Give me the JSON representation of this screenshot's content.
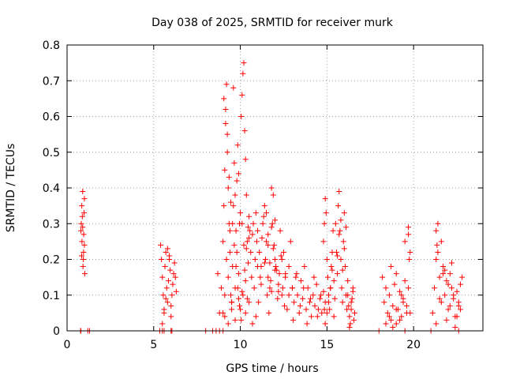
{
  "chart_data": {
    "type": "scatter",
    "title": "Day 038 of 2025, SRMTID for receiver murk",
    "xlabel": "GPS time / hours",
    "ylabel": "SRMTID / TECUs",
    "xlim": [
      0,
      24
    ],
    "ylim": [
      0,
      0.8
    ],
    "xticks": [
      0,
      5,
      10,
      15,
      20
    ],
    "yticks": [
      0,
      0.1,
      0.2,
      0.3,
      0.4,
      0.5,
      0.6,
      0.7,
      0.8
    ],
    "xtick_labels": [
      "0",
      "5",
      "10",
      "15",
      "20"
    ],
    "ytick_labels": [
      "0",
      "0.1",
      "0.2",
      "0.3",
      "0.4",
      "0.5",
      "0.6",
      "0.7",
      "0.8"
    ],
    "grid": true,
    "marker": "+",
    "marker_color": "#ff0000",
    "series": [
      {
        "x": [
          0.8,
          0.82,
          0.84,
          0.86,
          0.88,
          0.9,
          0.92,
          0.94,
          0.96,
          0.98,
          1.0,
          1.02,
          0.85,
          0.9,
          0.95,
          1.0,
          1.2,
          1.3,
          0.8,
          0.78,
          5.4,
          5.45,
          5.5,
          5.55,
          5.6,
          5.65,
          5.7,
          5.75,
          5.8,
          5.85,
          5.9,
          5.95,
          6.0,
          6.05,
          6.1,
          6.15,
          6.2,
          6.25,
          6.3,
          5.5,
          5.6,
          5.7,
          5.8,
          5.9,
          6.0,
          5.35,
          5.5,
          5.6,
          6.0,
          6.05,
          8.7,
          8.8,
          8.9,
          9.0,
          9.05,
          9.1,
          9.15,
          9.2,
          9.25,
          9.3,
          9.35,
          9.4,
          9.45,
          9.5,
          9.55,
          9.6,
          9.65,
          9.7,
          9.75,
          9.8,
          9.85,
          9.9,
          9.95,
          10.0,
          10.05,
          10.1,
          10.15,
          10.2,
          10.25,
          10.3,
          10.35,
          10.4,
          10.45,
          10.5,
          10.55,
          10.6,
          10.65,
          10.7,
          10.75,
          10.8,
          10.85,
          10.9,
          10.95,
          11.0,
          9.0,
          9.1,
          9.2,
          9.3,
          9.4,
          9.5,
          9.6,
          9.7,
          9.8,
          9.9,
          10.0,
          10.1,
          10.2,
          10.3,
          10.4,
          10.5,
          9.05,
          9.15,
          9.25,
          9.35,
          9.45,
          9.55,
          9.65,
          9.75,
          9.85,
          9.95,
          10.05,
          10.15,
          10.25,
          10.35,
          10.45,
          9.1,
          9.3,
          9.5,
          9.7,
          9.9,
          10.1,
          10.3,
          10.5,
          10.7,
          10.9,
          8.0,
          8.4,
          8.6,
          8.8,
          9.0,
          11.0,
          11.1,
          11.2,
          11.3,
          11.4,
          11.5,
          11.6,
          11.7,
          11.8,
          11.9,
          12.0,
          12.1,
          12.2,
          12.3,
          12.4,
          12.5,
          12.6,
          12.7,
          12.8,
          12.9,
          13.0,
          11.05,
          11.15,
          11.25,
          11.35,
          11.45,
          11.55,
          11.65,
          11.75,
          11.85,
          11.95,
          12.05,
          12.15,
          12.25,
          12.35,
          12.45,
          12.55,
          11.5,
          11.6,
          11.7,
          11.8,
          11.9,
          12.0,
          11.2,
          11.4,
          11.6,
          11.8,
          12.0,
          12.2,
          12.4,
          12.6,
          12.8,
          13.0,
          13.1,
          13.2,
          13.3,
          13.4,
          13.5,
          13.6,
          13.7,
          13.8,
          13.9,
          14.0,
          14.1,
          14.2,
          14.3,
          14.4,
          14.5,
          14.6,
          14.7,
          14.8,
          14.9,
          13.05,
          13.25,
          13.45,
          13.65,
          13.85,
          14.05,
          14.25,
          14.45,
          14.65,
          14.85,
          14.8,
          14.85,
          14.9,
          14.95,
          15.0,
          15.05,
          15.1,
          15.15,
          15.2,
          15.25,
          15.3,
          15.35,
          15.4,
          15.45,
          14.9,
          15.0,
          15.1,
          15.2,
          15.3,
          15.4,
          15.5,
          15.55,
          15.6,
          15.65,
          15.7,
          15.75,
          15.8,
          15.85,
          15.9,
          15.95,
          16.0,
          16.05,
          16.1,
          16.15,
          16.2,
          15.6,
          15.7,
          15.8,
          15.9,
          16.0,
          16.1,
          16.2,
          16.25,
          16.3,
          16.35,
          16.4,
          16.45,
          16.5,
          16.55,
          16.6,
          16.3,
          16.4,
          16.5,
          18.2,
          18.3,
          18.4,
          18.5,
          18.6,
          18.7,
          18.8,
          18.9,
          19.0,
          19.1,
          19.2,
          19.3,
          19.4,
          19.5,
          19.6,
          19.7,
          19.8,
          18.4,
          18.6,
          18.8,
          19.0,
          19.2,
          19.4,
          19.6,
          19.7,
          18.7,
          19.0,
          19.3,
          19.5,
          19.7,
          19.75,
          19.8,
          18.0,
          19.5,
          21.1,
          21.2,
          21.3,
          21.4,
          21.5,
          21.6,
          21.7,
          21.8,
          21.9,
          22.0,
          22.1,
          22.2,
          22.3,
          22.4,
          22.5,
          22.6,
          22.7,
          22.8,
          21.3,
          21.5,
          21.7,
          21.9,
          22.1,
          22.3,
          22.5,
          22.7,
          21.4,
          21.6,
          21.8,
          22.0,
          22.2,
          22.4,
          22.6,
          21.3,
          21.35,
          21.0,
          22.6
        ],
        "y": [
          0.28,
          0.3,
          0.21,
          0.25,
          0.32,
          0.39,
          0.18,
          0.2,
          0.27,
          0.33,
          0.24,
          0.16,
          0.35,
          0.29,
          0.22,
          0.37,
          0.0,
          0.0,
          0.0,
          0.0,
          0.24,
          0.2,
          0.15,
          0.1,
          0.05,
          0.18,
          0.22,
          0.12,
          0.08,
          0.14,
          0.2,
          0.17,
          0.04,
          0.1,
          0.13,
          0.16,
          0.19,
          0.15,
          0.11,
          0.02,
          0.06,
          0.09,
          0.23,
          0.21,
          0.07,
          0.0,
          0.0,
          0.0,
          0.0,
          0.0,
          0.16,
          0.05,
          0.12,
          0.25,
          0.35,
          0.45,
          0.62,
          0.69,
          0.55,
          0.4,
          0.3,
          0.22,
          0.1,
          0.08,
          0.18,
          0.68,
          0.47,
          0.38,
          0.28,
          0.42,
          0.52,
          0.44,
          0.3,
          0.33,
          0.6,
          0.66,
          0.72,
          0.75,
          0.56,
          0.48,
          0.38,
          0.25,
          0.19,
          0.32,
          0.28,
          0.22,
          0.15,
          0.27,
          0.3,
          0.12,
          0.2,
          0.33,
          0.25,
          0.18,
          0.05,
          0.1,
          0.2,
          0.15,
          0.28,
          0.08,
          0.35,
          0.12,
          0.22,
          0.16,
          0.06,
          0.3,
          0.24,
          0.14,
          0.09,
          0.26,
          0.65,
          0.58,
          0.5,
          0.43,
          0.36,
          0.3,
          0.24,
          0.18,
          0.12,
          0.07,
          0.03,
          0.1,
          0.17,
          0.23,
          0.29,
          0.04,
          0.02,
          0.06,
          0.03,
          0.09,
          0.11,
          0.05,
          0.08,
          0.02,
          0.04,
          0.0,
          0.0,
          0.0,
          0.0,
          0.0,
          0.28,
          0.22,
          0.18,
          0.3,
          0.35,
          0.25,
          0.15,
          0.12,
          0.4,
          0.38,
          0.2,
          0.17,
          0.13,
          0.28,
          0.1,
          0.22,
          0.16,
          0.06,
          0.18,
          0.25,
          0.12,
          0.08,
          0.15,
          0.26,
          0.32,
          0.2,
          0.1,
          0.05,
          0.14,
          0.3,
          0.24,
          0.18,
          0.09,
          0.16,
          0.21,
          0.12,
          0.07,
          0.33,
          0.27,
          0.19,
          0.11,
          0.23,
          0.31,
          0.13,
          0.19,
          0.24,
          0.29,
          0.17,
          0.11,
          0.2,
          0.15,
          0.1,
          0.12,
          0.08,
          0.15,
          0.1,
          0.05,
          0.14,
          0.09,
          0.18,
          0.06,
          0.12,
          0.08,
          0.04,
          0.1,
          0.07,
          0.13,
          0.06,
          0.09,
          0.05,
          0.11,
          0.08,
          0.03,
          0.16,
          0.07,
          0.12,
          0.02,
          0.09,
          0.15,
          0.04,
          0.1,
          0.06,
          0.25,
          0.3,
          0.37,
          0.33,
          0.2,
          0.15,
          0.1,
          0.06,
          0.12,
          0.18,
          0.22,
          0.28,
          0.14,
          0.09,
          0.02,
          0.05,
          0.08,
          0.12,
          0.17,
          0.04,
          0.3,
          0.22,
          0.16,
          0.35,
          0.39,
          0.28,
          0.2,
          0.12,
          0.08,
          0.25,
          0.33,
          0.18,
          0.1,
          0.06,
          0.14,
          0.21,
          0.27,
          0.31,
          0.17,
          0.23,
          0.29,
          0.1,
          0.07,
          0.04,
          0.02,
          0.06,
          0.09,
          0.12,
          0.03,
          0.05,
          0.01,
          0.08,
          0.11,
          0.15,
          0.08,
          0.12,
          0.05,
          0.1,
          0.03,
          0.07,
          0.13,
          0.02,
          0.06,
          0.11,
          0.04,
          0.09,
          0.14,
          0.07,
          0.12,
          0.05,
          0.02,
          0.04,
          0.01,
          0.06,
          0.03,
          0.08,
          0.05,
          0.29,
          0.18,
          0.16,
          0.1,
          0.25,
          0.27,
          0.2,
          0.22,
          0.0,
          0.0,
          0.05,
          0.12,
          0.2,
          0.3,
          0.15,
          0.08,
          0.18,
          0.1,
          0.14,
          0.06,
          0.16,
          0.12,
          0.09,
          0.04,
          0.11,
          0.07,
          0.13,
          0.15,
          0.02,
          0.09,
          0.16,
          0.03,
          0.07,
          0.1,
          0.04,
          0.06,
          0.22,
          0.25,
          0.17,
          0.13,
          0.19,
          0.01,
          0.08,
          0.28,
          0.24,
          0.0,
          0.0
        ]
      }
    ]
  }
}
